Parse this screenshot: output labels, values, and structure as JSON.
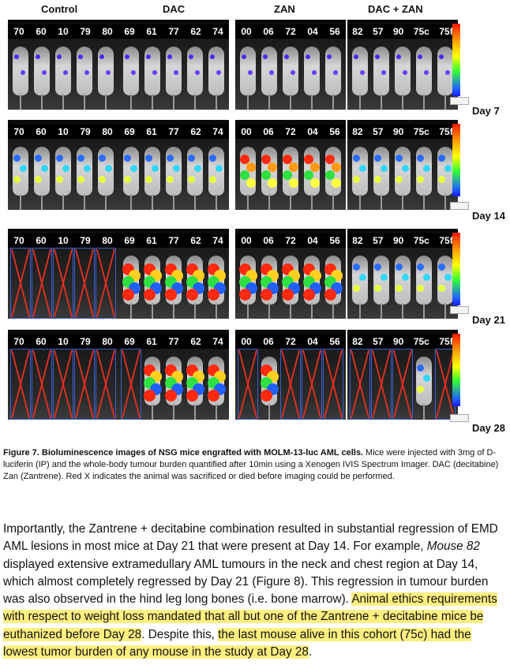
{
  "groups": [
    "Control",
    "DAC",
    "ZAN",
    "DAC + ZAN"
  ],
  "ids": [
    [
      "70",
      "60",
      "10",
      "79",
      "80"
    ],
    [
      "69",
      "61",
      "77",
      "62",
      "74"
    ],
    [
      "00",
      "06",
      "72",
      "04",
      "56"
    ],
    [
      "82",
      "57",
      "90",
      "75c",
      "75f"
    ]
  ],
  "days": [
    "Day 7",
    "Day 14",
    "Day 21",
    "Day 28"
  ],
  "caption": {
    "bold": "Figure 7. Bioluminescence images of NSG mice engrafted with MOLM-13-luc AML cells.",
    "rest": " Mice were injected with 3mg of D-luciferin (IP) and the whole-body tumour burden quantified after 10min using a Xenogen IVIS Spectrum Imager. DAC (decitabine) Zan (Zantrene). Red X indicates the animal was sacrificed or died before imaging could be performed."
  },
  "body": {
    "p1": "Importantly, the Zantrene + decitabine combination resulted in substantial regression of EMD AML lesions in most mice at Day 21 that were present at Day 14. For example, ",
    "mouse": "Mouse 82",
    "p2": " displayed extensive extramedullary AML tumours in the neck and chest region at Day 14, which almost completely regressed by Day 21 (Figure 8). This regression in tumour burden was also observed in the hind leg long bones (i.e. bone marrow). ",
    "hl1": "Animal ethics requirements with respect to weight loss mandated that all but one of the Zantrene + decitabine mice be euthanized before Day 28",
    "p3": ". Despite this, ",
    "hl2": "the last mouse alive in this cohort (75c) had the lowest tumor burden of any mouse in the study at Day 28",
    "p4": "."
  },
  "colors": {
    "highlight": "#ffef80",
    "sacrificed_x": "#e03020"
  }
}
